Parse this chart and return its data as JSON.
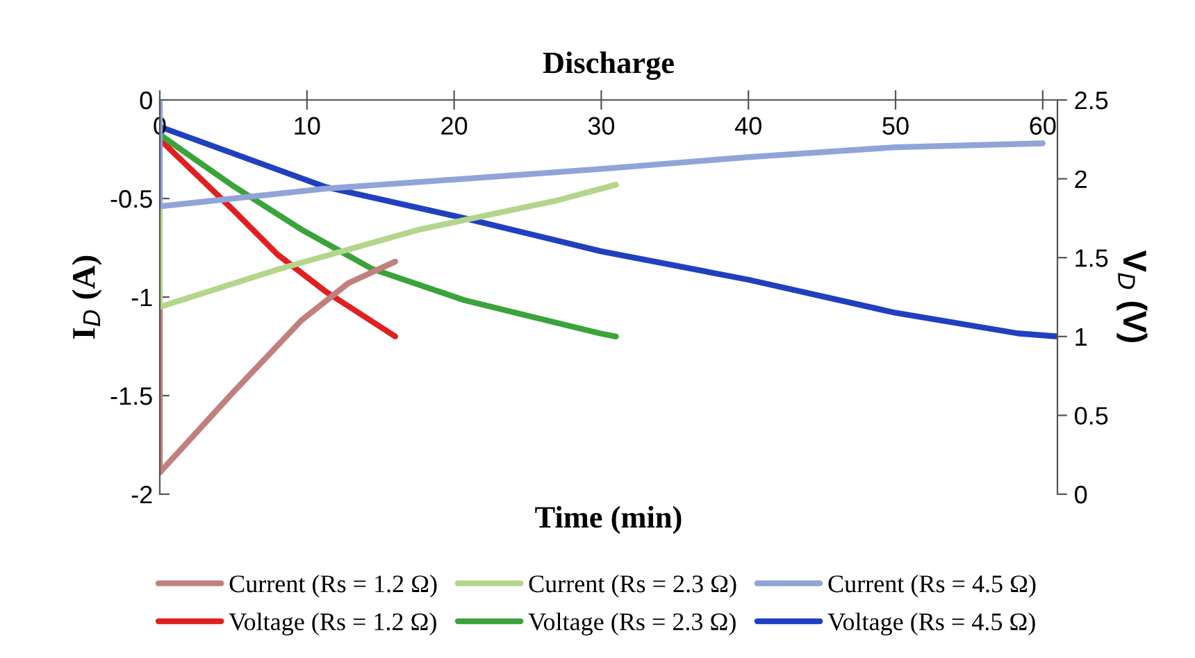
{
  "chart_data": {
    "type": "line",
    "title": "Discharge",
    "xlabel": "Time (min)",
    "ylabel": "I$_{D}$ (A)",
    "y2label": "V$_{D}$ (V)",
    "xlim": [
      0,
      61
    ],
    "xticks": [
      0,
      10,
      20,
      30,
      40,
      50,
      60
    ],
    "ylim": [
      -2,
      0
    ],
    "yticks": [
      -2,
      -1.5,
      -1,
      -0.5,
      0
    ],
    "y2lim": [
      0,
      2.5
    ],
    "y2ticks": [
      0,
      0.5,
      1,
      1.5,
      2,
      2.5
    ],
    "grid": false,
    "legend": "bottom",
    "marker": "none",
    "line_style": "solid",
    "series": [
      {
        "name": "Current (Rs = 1.2 Ω)",
        "color": "#c0807e",
        "x": [
          0,
          0,
          4.9,
          9.6,
          12.8,
          16
        ],
        "values": [
          -1.05,
          -1.89,
          -1.49,
          -1.12,
          -0.93,
          -0.82
        ]
      },
      {
        "name": "Current (Rs = 2.3 Ω)",
        "color": "#b3d68a",
        "x": [
          0,
          0,
          8,
          17.5,
          27,
          31
        ],
        "values": [
          -0.55,
          -1.05,
          -0.86,
          -0.66,
          -0.51,
          -0.43
        ]
      },
      {
        "name": "Current (Rs = 4.5 Ω)",
        "color": "#90a4d8",
        "x": [
          0,
          0,
          11.2,
          20.7,
          30,
          40,
          50,
          60
        ],
        "values": [
          0,
          -0.54,
          -0.45,
          -0.4,
          -0.35,
          -0.29,
          -0.24,
          -0.22
        ]
      },
      {
        "name": "Voltage (Rs = 1.2 Ω)",
        "color": "#e02020",
        "axis": "y2",
        "x": [
          0,
          4.9,
          8,
          11.2,
          16
        ],
        "values": [
          2.25,
          1.81,
          1.52,
          1.29,
          1.0
        ]
      },
      {
        "name": "Voltage (Rs = 2.3 Ω)",
        "color": "#3aa33a",
        "axis": "y2",
        "x": [
          0,
          4.9,
          9.6,
          14.4,
          20.7,
          29.9,
          31
        ],
        "values": [
          2.28,
          1.96,
          1.68,
          1.43,
          1.23,
          1.02,
          1.0
        ]
      },
      {
        "name": "Voltage (Rs = 4.5 Ω)",
        "color": "#2040c0",
        "axis": "y2",
        "x": [
          0,
          11.2,
          20.7,
          30,
          40,
          50,
          58.3,
          61
        ],
        "values": [
          2.33,
          1.95,
          1.75,
          1.54,
          1.36,
          1.15,
          1.02,
          1.0
        ]
      }
    ]
  }
}
